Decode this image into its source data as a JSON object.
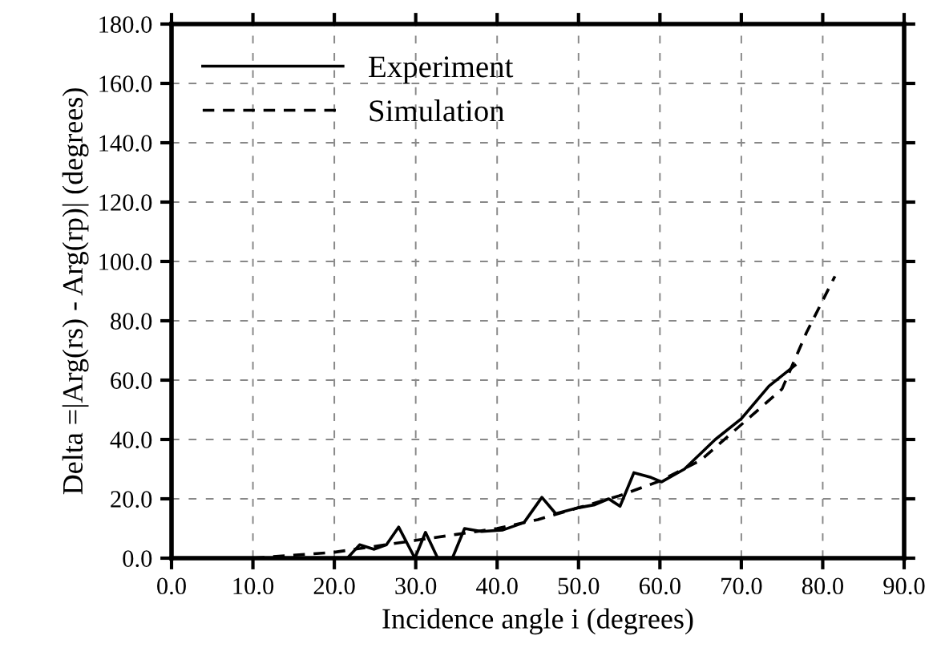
{
  "chart_data": {
    "type": "line",
    "xlabel": "Incidence angle i (degrees)",
    "ylabel": "Delta =|Arg(rs) - Arg(rp)| (degrees)",
    "xlim": [
      0,
      90
    ],
    "xticks": [
      {
        "value": 0,
        "label": "0.0"
      },
      {
        "value": 10,
        "label": "10.0"
      },
      {
        "value": 20,
        "label": "20.0"
      },
      {
        "value": 30,
        "label": "30.0"
      },
      {
        "value": 40,
        "label": "40.0"
      },
      {
        "value": 50,
        "label": "50.0"
      },
      {
        "value": 60,
        "label": "60.0"
      },
      {
        "value": 70,
        "label": "70.0"
      },
      {
        "value": 80,
        "label": "80.0"
      },
      {
        "value": 90,
        "label": "90.0"
      }
    ],
    "ylim": [
      0,
      180
    ],
    "yticks": [
      {
        "value": 0,
        "label": "0.0"
      },
      {
        "value": 20,
        "label": "20.0"
      },
      {
        "value": 40,
        "label": "40.0"
      },
      {
        "value": 60,
        "label": "60.0"
      },
      {
        "value": 80,
        "label": "80.0"
      },
      {
        "value": 100,
        "label": "100.0"
      },
      {
        "value": 120,
        "label": "120.0"
      },
      {
        "value": 140,
        "label": "140.0"
      },
      {
        "value": 160,
        "label": "160.0"
      },
      {
        "value": 180,
        "label": "180.0"
      }
    ],
    "grid": true,
    "legend": "top left",
    "series": [
      {
        "name": "Experiment",
        "color": "#000000",
        "line_style": "solid",
        "x": [
          21.6,
          23.1,
          24.9,
          26.4,
          27.9,
          29.9,
          31.2,
          32.7,
          34.5,
          36,
          38.1,
          40.7,
          43.3,
          45.5,
          47.2,
          50,
          52,
          53.7,
          55.1,
          56.8,
          58.9,
          60.2,
          63,
          66.8,
          70,
          73.4,
          76.6
        ],
        "values": [
          0,
          4.5,
          3,
          4.5,
          10.5,
          0,
          8.7,
          0,
          0,
          10,
          9,
          9.5,
          12,
          20.5,
          15,
          17,
          18,
          20,
          17.5,
          28.8,
          27.2,
          25.7,
          30,
          40,
          47,
          58,
          65
        ]
      },
      {
        "name": "Simulation",
        "color": "#000000",
        "line_style": "dashed",
        "x": [
          10,
          15,
          20,
          25,
          30,
          35,
          40,
          45,
          50,
          55,
          60,
          65,
          70,
          75,
          78,
          81.5
        ],
        "values": [
          0,
          1,
          2,
          4,
          6,
          8,
          10,
          13,
          17,
          21,
          26,
          33,
          45,
          57,
          76,
          95
        ]
      }
    ]
  }
}
